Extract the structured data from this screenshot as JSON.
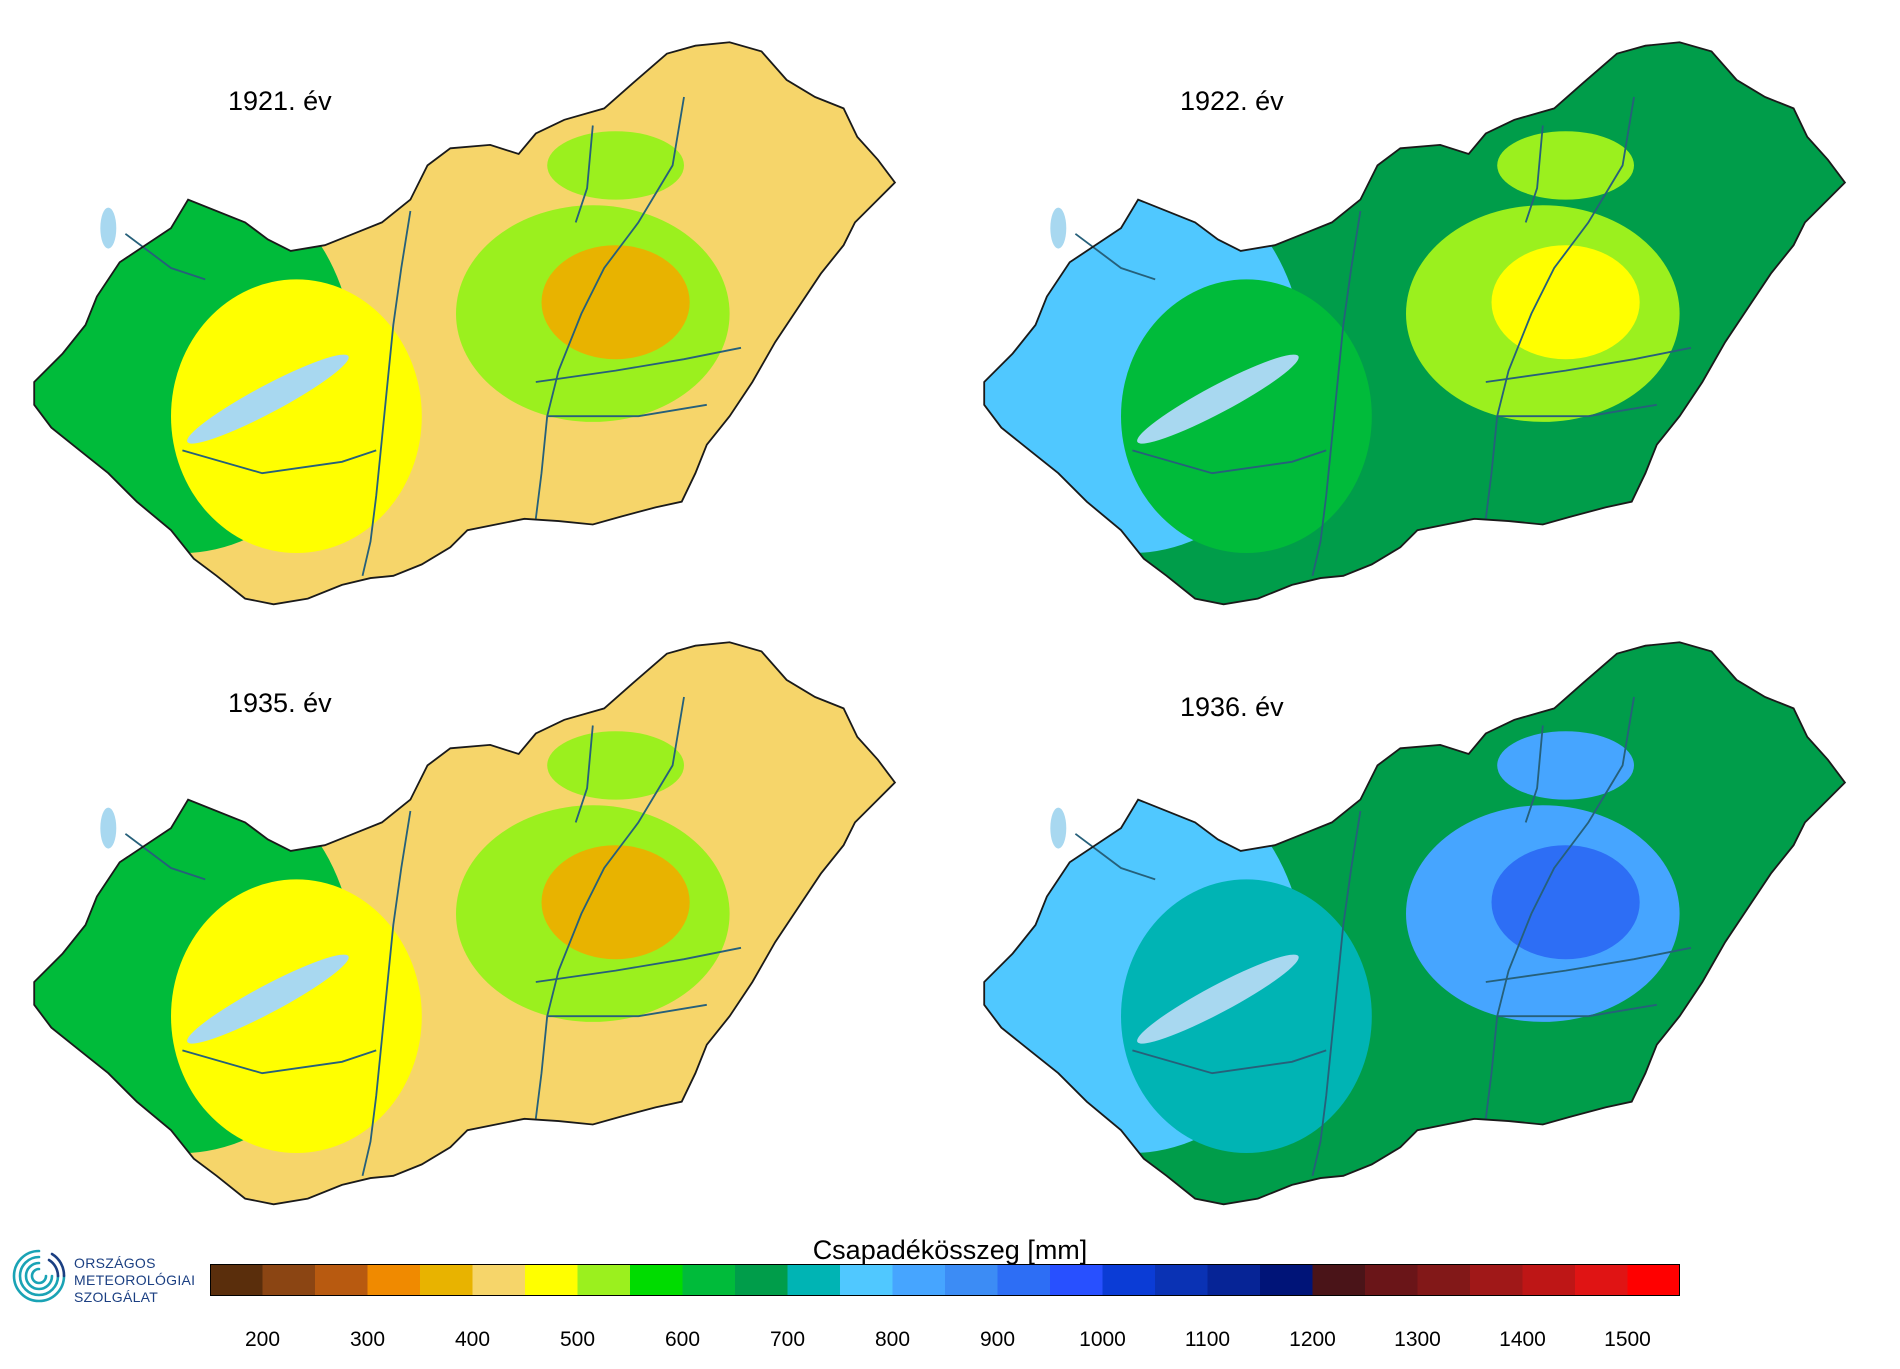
{
  "panels": [
    {
      "id": "p1921",
      "label": "1921. év"
    },
    {
      "id": "p1922",
      "label": "1922. év"
    },
    {
      "id": "p1935",
      "label": "1935. év"
    },
    {
      "id": "p1936",
      "label": "1936. év"
    }
  ],
  "legend": {
    "title": "Csapadékösszeg [mm]",
    "tick_labels": [
      "200",
      "300",
      "400",
      "500",
      "600",
      "700",
      "800",
      "900",
      "1000",
      "1100",
      "1200",
      "1300",
      "1400",
      "1500"
    ],
    "min": 150,
    "max": 1550,
    "step": 50,
    "colors": [
      "#5a2e0c",
      "#8b4513",
      "#b85a10",
      "#f08a00",
      "#e8b300",
      "#f6d56a",
      "#ffff00",
      "#9bf01e",
      "#00dc00",
      "#00bb3a",
      "#009d4a",
      "#00b4b4",
      "#50c8ff",
      "#46a5ff",
      "#3c8cf5",
      "#2d6ef5",
      "#2850ff",
      "#0b3cd6",
      "#0a32b4",
      "#062496",
      "#001478",
      "#4a1418",
      "#6a1518",
      "#821818",
      "#a01818",
      "#be1616",
      "#e01414",
      "#ff0000"
    ]
  },
  "logo": {
    "line1": "ORSZÁGOS",
    "line2": "METEOROLÓGIAI",
    "line3": "SZOLGÁLAT",
    "color": "#1b3f82"
  },
  "map_palette": {
    "p1921": {
      "base": "#f6d56a",
      "west": "#00bb3a",
      "mid": "#ffff00",
      "accent": "#9bf01e",
      "dry": "#e8b300"
    },
    "p1922": {
      "base": "#009d4a",
      "west": "#50c8ff",
      "mid": "#00bb3a",
      "accent": "#9bf01e",
      "dry": "#ffff00"
    },
    "p1935": {
      "base": "#f6d56a",
      "west": "#00bb3a",
      "mid": "#ffff00",
      "accent": "#9bf01e",
      "dry": "#e8b300"
    },
    "p1936": {
      "base": "#009d4a",
      "west": "#50c8ff",
      "mid": "#00b4b4",
      "accent": "#46a5ff",
      "dry": "#2d6ef5"
    }
  }
}
